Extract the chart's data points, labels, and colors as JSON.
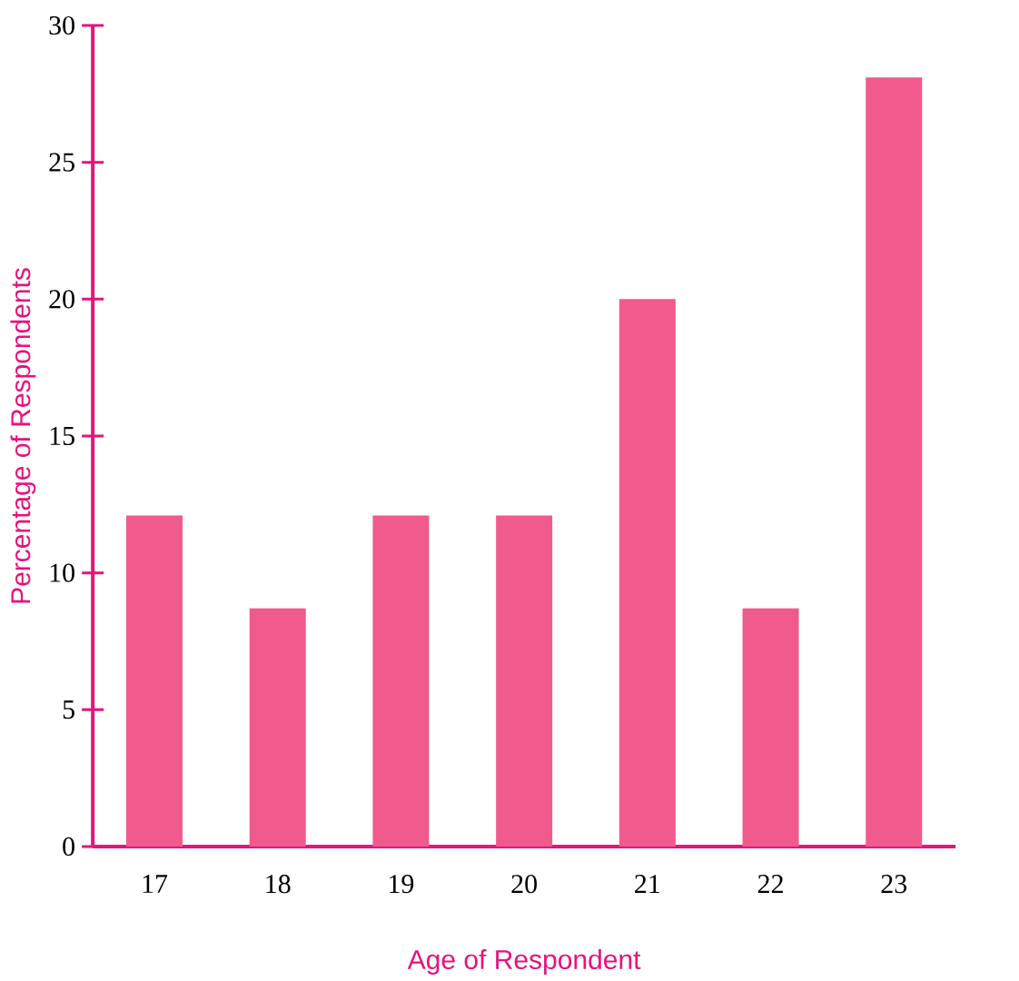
{
  "chart_data": {
    "type": "bar",
    "xlabel": "Age of Respondent",
    "ylabel": "Percentage of Respondents",
    "categories": [
      "17",
      "18",
      "19",
      "20",
      "21",
      "22",
      "23"
    ],
    "values": [
      12.1,
      8.7,
      12.1,
      12.1,
      20,
      8.7,
      28.1
    ],
    "color": "#f05a8c",
    "ylim": [
      0,
      30
    ],
    "yticks": [
      0,
      5,
      10,
      15,
      20,
      25,
      30
    ],
    "grid": false
  }
}
